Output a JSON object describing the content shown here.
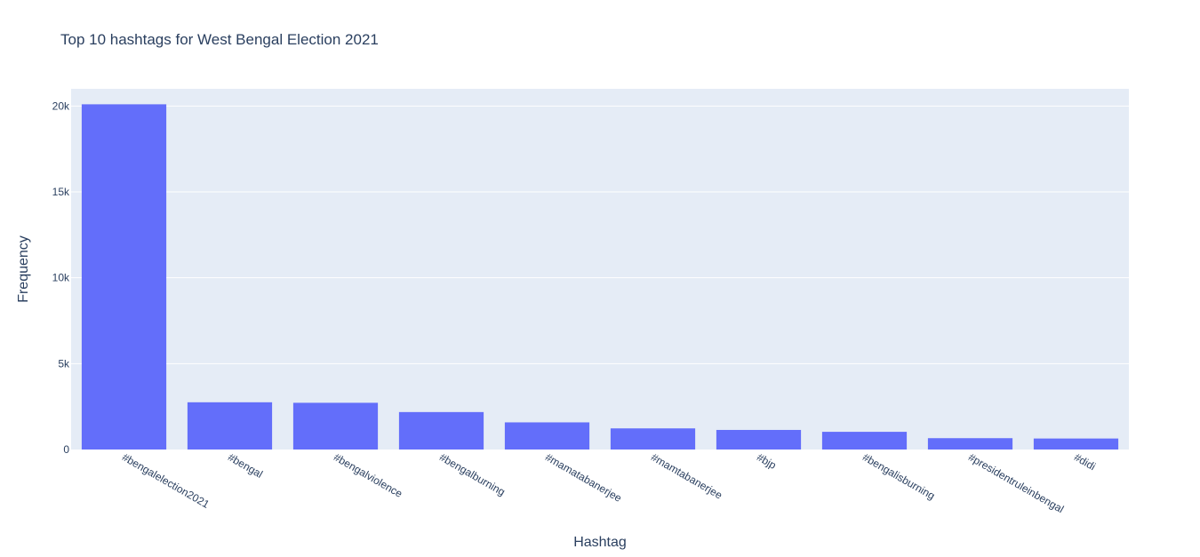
{
  "chart_data": {
    "type": "bar",
    "title": "Top 10 hashtags for West Bengal Election 2021",
    "xlabel": "Hashtag",
    "ylabel": "Frequency",
    "categories": [
      "#bengalelection2021",
      "#bengal",
      "#bengalviolence",
      "#bengalburning",
      "#mamatabanerjee",
      "#mamtabanerjee",
      "#bjp",
      "#bengalisburning",
      "#presidentruleinbengal",
      "#didi"
    ],
    "values": [
      20100,
      2750,
      2720,
      2180,
      1580,
      1230,
      1140,
      1030,
      660,
      640
    ],
    "ylim": [
      0,
      21000
    ],
    "yticks": [
      0,
      5000,
      10000,
      15000,
      20000
    ],
    "ytick_labels": [
      "0",
      "5k",
      "10k",
      "15k",
      "20k"
    ],
    "grid": true,
    "bar_color": "#636efa",
    "plot_bg_color": "#e5ecf6"
  }
}
